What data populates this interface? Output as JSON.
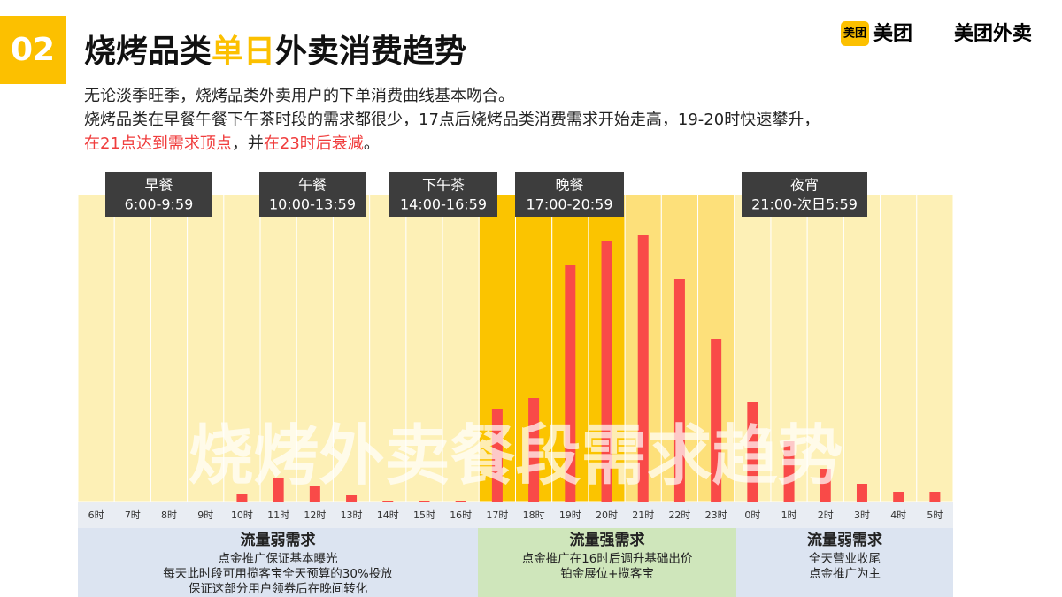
{
  "header": {
    "number": "02",
    "title_parts": [
      "烧烤品类",
      "单日",
      "外卖消费趋势"
    ],
    "logo_badge": "美团",
    "logo_1": "美团",
    "logo_2": "美团外卖",
    "lines": [
      "无论淡季旺季，烧烤品类外卖用户的下单消费曲线基本吻合。",
      "烧烤品类在早餐午餐下午茶时段的需求都很少，17点后烧烤品类消费需求开始走高，19-20时快速攀升，"
    ],
    "line3_parts": [
      "在21点达到需求顶点",
      "，并",
      "在23时后衰减",
      "。"
    ]
  },
  "chart_data": {
    "type": "bar",
    "watermark": "烧烤外卖餐段需求趋势",
    "color": "#f94a48",
    "categories": [
      "6时",
      "7时",
      "8时",
      "9时",
      "10时",
      "11时",
      "12时",
      "13时",
      "14时",
      "15时",
      "16时",
      "17时",
      "18时",
      "19时",
      "20时",
      "21时",
      "22时",
      "23时",
      "0时",
      "1时",
      "2时",
      "3时",
      "4时",
      "5时"
    ],
    "values": [
      0,
      0,
      0,
      0,
      10,
      28,
      18,
      8,
      2,
      2,
      2,
      106,
      118,
      268,
      296,
      302,
      252,
      185,
      114,
      69,
      38,
      21,
      12,
      12
    ]
  },
  "periods": [
    {
      "name": "早餐",
      "time": "6:00-9:59"
    },
    {
      "name": "午餐",
      "time": "10:00-13:59"
    },
    {
      "name": "下午茶",
      "time": "14:00-16:59"
    },
    {
      "name": "晚餐",
      "time": "17:00-20:59"
    },
    {
      "name": "夜宵",
      "time": "21:00-次日5:59"
    }
  ],
  "panels": [
    {
      "title": "流量弱需求",
      "lines": [
        "点金推广保证基本曝光",
        "每天此时段可用揽客宝全天预算的30%投放",
        "保证这部分用户领券后在晚间转化"
      ]
    },
    {
      "title": "流量强需求",
      "lines": [
        "点金推广在16时后调升基础出价",
        "铂金展位+揽客宝"
      ]
    },
    {
      "title": "流量弱需求",
      "lines": [
        "全天营业收尾",
        "点金推广为主"
      ]
    }
  ]
}
